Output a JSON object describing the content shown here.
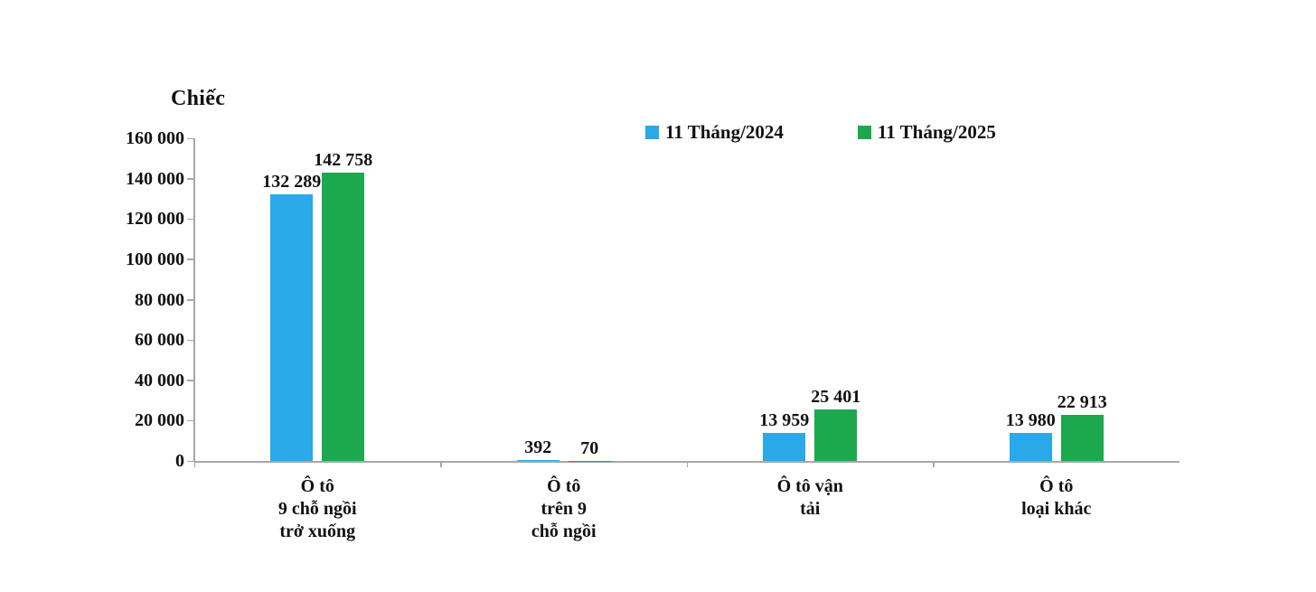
{
  "chart_data": {
    "type": "bar",
    "title": "",
    "unit_label": "Chiếc",
    "categories": [
      {
        "label": "Ô tô 9 chỗ ngồi trở xuống",
        "lines": [
          "Ô tô",
          "9 chỗ ngồi",
          "trở xuống"
        ]
      },
      {
        "label": "Ô tô trên 9 chỗ ngồi",
        "lines": [
          "Ô tô",
          "trên 9",
          "chỗ ngồi"
        ]
      },
      {
        "label": "Ô tô vận tải",
        "lines": [
          "Ô tô vận",
          "tải"
        ]
      },
      {
        "label": "Ô tô loại khác",
        "lines": [
          "Ô tô",
          "loại khác"
        ]
      }
    ],
    "series": [
      {
        "name": "11 Tháng/2024",
        "color": "#2aa9e8",
        "values": [
          132289,
          392,
          13959,
          13980
        ]
      },
      {
        "name": "11 Tháng/2025",
        "color": "#1ca94e",
        "values": [
          142758,
          70,
          25401,
          22913
        ]
      }
    ],
    "data_label_texts": {
      "series_2024": [
        "132 289",
        "392",
        "13 959",
        "13 980"
      ],
      "series_2025": [
        "142 758",
        "70",
        "25 401",
        "22 913"
      ]
    },
    "ylim": [
      0,
      160000
    ],
    "ytick_step": 20000,
    "ytick_labels": [
      "0",
      "20 000",
      "40 000",
      "60 000",
      "80 000",
      "100 000",
      "120 000",
      "140 000",
      "160 000"
    ],
    "grid": false,
    "legend_position": "top-center",
    "number_format": "space-thousands",
    "axis_color": "#a7a7a7",
    "text_color": "#111111"
  }
}
